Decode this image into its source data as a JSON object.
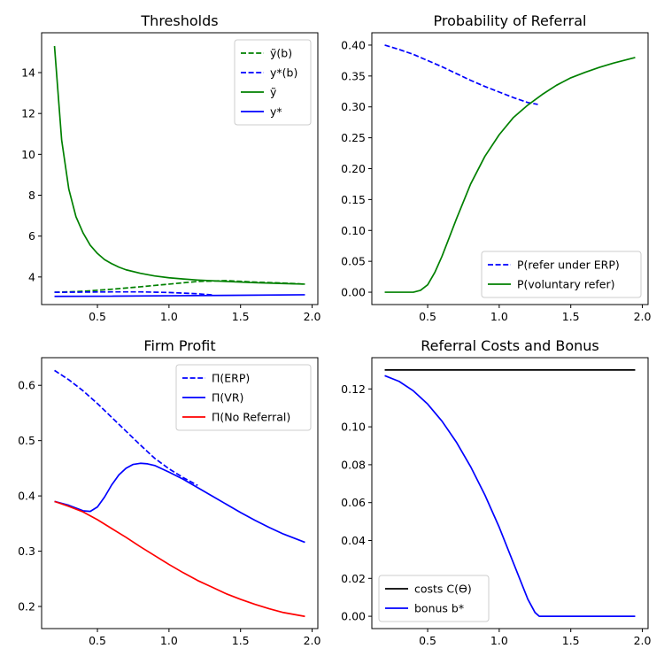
{
  "chart_data": [
    {
      "type": "line",
      "title": "Thresholds",
      "xlabel": "",
      "ylabel": "",
      "xlim": [
        0.11,
        2.04
      ],
      "ylim": [
        2.65,
        15.95
      ],
      "xticks": [
        0.5,
        1.0,
        1.5,
        2.0
      ],
      "xtick_labels": [
        "0.5",
        "1.0",
        "1.5",
        "2.0"
      ],
      "yticks": [
        4,
        6,
        8,
        10,
        12,
        14
      ],
      "ytick_labels": [
        "4",
        "6",
        "8",
        "10",
        "12",
        "14"
      ],
      "legend_position": "top-right",
      "legend_order": [
        0,
        1,
        2,
        3
      ],
      "series": [
        {
          "name": "ỹ(b)",
          "color": "#008000",
          "dashed": true,
          "x": [
            0.2,
            0.4,
            0.6,
            0.8,
            1.0,
            1.2,
            1.4,
            1.6,
            1.8,
            1.95
          ],
          "y": [
            3.25,
            3.3,
            3.4,
            3.52,
            3.65,
            3.78,
            3.82,
            3.75,
            3.7,
            3.65
          ]
        },
        {
          "name": "y*(b)",
          "color": "#0000ff",
          "dashed": true,
          "x": [
            0.2,
            0.4,
            0.6,
            0.8,
            1.0,
            1.2,
            1.3
          ],
          "y": [
            3.25,
            3.26,
            3.27,
            3.27,
            3.24,
            3.18,
            3.12
          ]
        },
        {
          "name": "ỹ",
          "color": "#008000",
          "dashed": false,
          "x": [
            0.2,
            0.25,
            0.3,
            0.35,
            0.4,
            0.45,
            0.5,
            0.55,
            0.6,
            0.65,
            0.7,
            0.8,
            0.9,
            1.0,
            1.1,
            1.2,
            1.4,
            1.6,
            1.8,
            1.95
          ],
          "y": [
            15.3,
            10.7,
            8.3,
            6.95,
            6.15,
            5.55,
            5.15,
            4.85,
            4.65,
            4.48,
            4.35,
            4.18,
            4.05,
            3.96,
            3.9,
            3.85,
            3.78,
            3.72,
            3.68,
            3.65
          ]
        },
        {
          "name": "y*",
          "color": "#0000ff",
          "dashed": false,
          "x": [
            0.2,
            0.6,
            1.0,
            1.4,
            1.95
          ],
          "y": [
            3.05,
            3.06,
            3.08,
            3.1,
            3.13
          ]
        }
      ]
    },
    {
      "type": "line",
      "title": "Probability of Referral",
      "xlabel": "",
      "ylabel": "",
      "xlim": [
        0.11,
        2.04
      ],
      "ylim": [
        -0.02,
        0.42
      ],
      "xticks": [
        0.5,
        1.0,
        1.5,
        2.0
      ],
      "xtick_labels": [
        "0.5",
        "1.0",
        "1.5",
        "2.0"
      ],
      "yticks": [
        0.0,
        0.05,
        0.1,
        0.15,
        0.2,
        0.25,
        0.3,
        0.35,
        0.4
      ],
      "ytick_labels": [
        "0.00",
        "0.05",
        "0.10",
        "0.15",
        "0.20",
        "0.25",
        "0.30",
        "0.35",
        "0.40"
      ],
      "legend_position": "bottom-right",
      "legend_order": [
        0,
        1
      ],
      "series": [
        {
          "name": "P(refer under ERP)",
          "color": "#0000ff",
          "dashed": true,
          "x": [
            0.2,
            0.3,
            0.4,
            0.5,
            0.6,
            0.7,
            0.8,
            0.9,
            1.0,
            1.1,
            1.2,
            1.27
          ],
          "y": [
            0.4,
            0.393,
            0.385,
            0.375,
            0.365,
            0.354,
            0.343,
            0.333,
            0.324,
            0.315,
            0.307,
            0.304
          ]
        },
        {
          "name": "P(voluntary refer)",
          "color": "#008000",
          "dashed": false,
          "x": [
            0.2,
            0.3,
            0.4,
            0.45,
            0.5,
            0.55,
            0.6,
            0.65,
            0.7,
            0.8,
            0.9,
            1.0,
            1.1,
            1.2,
            1.3,
            1.4,
            1.5,
            1.6,
            1.7,
            1.8,
            1.95
          ],
          "y": [
            0.0,
            0.0,
            0.0,
            0.003,
            0.012,
            0.032,
            0.058,
            0.088,
            0.118,
            0.175,
            0.22,
            0.255,
            0.283,
            0.303,
            0.32,
            0.335,
            0.347,
            0.356,
            0.364,
            0.371,
            0.38
          ]
        }
      ]
    },
    {
      "type": "line",
      "title": "Firm Profit",
      "xlabel": "",
      "ylabel": "",
      "xlim": [
        0.11,
        2.04
      ],
      "ylim": [
        0.16,
        0.65
      ],
      "xticks": [
        0.5,
        1.0,
        1.5,
        2.0
      ],
      "xtick_labels": [
        "0.5",
        "1.0",
        "1.5",
        "2.0"
      ],
      "yticks": [
        0.2,
        0.3,
        0.4,
        0.5,
        0.6
      ],
      "ytick_labels": [
        "0.2",
        "0.3",
        "0.4",
        "0.5",
        "0.6"
      ],
      "legend_position": "top-right",
      "legend_order": [
        0,
        1,
        2
      ],
      "series": [
        {
          "name": "Π(ERP)",
          "color": "#0000ff",
          "dashed": true,
          "x": [
            0.2,
            0.3,
            0.4,
            0.5,
            0.6,
            0.7,
            0.8,
            0.9,
            1.0,
            1.1,
            1.2
          ],
          "y": [
            0.627,
            0.61,
            0.59,
            0.567,
            0.542,
            0.517,
            0.492,
            0.468,
            0.449,
            0.433,
            0.419
          ]
        },
        {
          "name": "Π(VR)",
          "color": "#0000ff",
          "dashed": false,
          "x": [
            0.2,
            0.3,
            0.4,
            0.45,
            0.5,
            0.55,
            0.6,
            0.65,
            0.7,
            0.75,
            0.8,
            0.85,
            0.9,
            0.95,
            1.0,
            1.1,
            1.2,
            1.3,
            1.4,
            1.5,
            1.6,
            1.7,
            1.8,
            1.95
          ],
          "y": [
            0.39,
            0.383,
            0.373,
            0.372,
            0.38,
            0.398,
            0.42,
            0.438,
            0.45,
            0.457,
            0.459,
            0.458,
            0.455,
            0.449,
            0.443,
            0.43,
            0.415,
            0.4,
            0.385,
            0.37,
            0.356,
            0.343,
            0.331,
            0.316
          ]
        },
        {
          "name": "Π(No Referral)",
          "color": "#ff0000",
          "dashed": false,
          "x": [
            0.2,
            0.3,
            0.4,
            0.5,
            0.6,
            0.7,
            0.8,
            0.9,
            1.0,
            1.1,
            1.2,
            1.3,
            1.4,
            1.5,
            1.6,
            1.7,
            1.8,
            1.95
          ],
          "y": [
            0.39,
            0.381,
            0.371,
            0.357,
            0.341,
            0.325,
            0.308,
            0.292,
            0.276,
            0.261,
            0.247,
            0.235,
            0.223,
            0.213,
            0.204,
            0.196,
            0.189,
            0.182
          ]
        }
      ]
    },
    {
      "type": "line",
      "title": "Referral Costs and Bonus",
      "xlabel": "",
      "ylabel": "",
      "xlim": [
        0.11,
        2.04
      ],
      "ylim": [
        -0.0065,
        0.1365
      ],
      "xticks": [
        0.5,
        1.0,
        1.5,
        2.0
      ],
      "xtick_labels": [
        "0.5",
        "1.0",
        "1.5",
        "2.0"
      ],
      "yticks": [
        0.0,
        0.02,
        0.04,
        0.06,
        0.08,
        0.1,
        0.12
      ],
      "ytick_labels": [
        "0.00",
        "0.02",
        "0.04",
        "0.06",
        "0.08",
        "0.10",
        "0.12"
      ],
      "legend_position": "bottom-left",
      "legend_order": [
        0,
        1
      ],
      "series": [
        {
          "name": "costs C(ϴ)",
          "color": "#000000",
          "dashed": false,
          "x": [
            0.2,
            1.95
          ],
          "y": [
            0.13,
            0.13
          ]
        },
        {
          "name": "bonus b*",
          "color": "#0000ff",
          "dashed": false,
          "x": [
            0.2,
            0.3,
            0.4,
            0.5,
            0.6,
            0.7,
            0.8,
            0.9,
            1.0,
            1.1,
            1.2,
            1.25,
            1.28,
            1.4,
            1.6,
            1.8,
            1.95
          ],
          "y": [
            0.127,
            0.124,
            0.119,
            0.112,
            0.103,
            0.092,
            0.079,
            0.064,
            0.047,
            0.028,
            0.009,
            0.002,
            0.0,
            0.0,
            0.0,
            0.0,
            0.0
          ]
        }
      ]
    }
  ]
}
